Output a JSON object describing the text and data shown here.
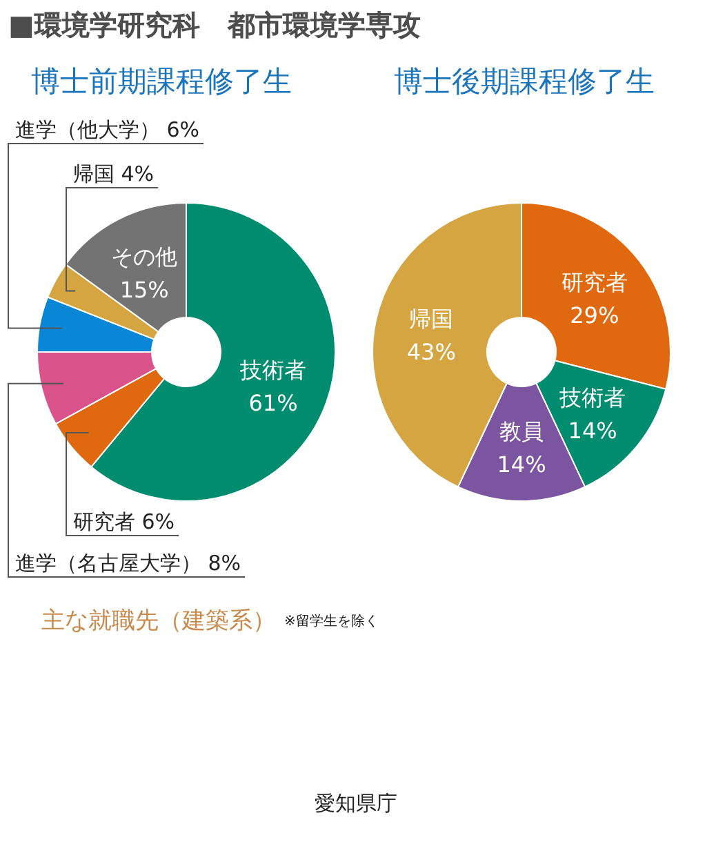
{
  "chart_data": [
    {
      "type": "donut",
      "title": "■環境学研究科　都市環境学専攻",
      "subtitle": "博士前期課程修了生",
      "categories": [
        "技術者",
        "研究者",
        "進学（名古屋大学）",
        "進学（他大学）",
        "帰国",
        "その他"
      ],
      "values": [
        61,
        6,
        8,
        6,
        4,
        15
      ],
      "value_labels": [
        "61%",
        "6%",
        "8%",
        "6%",
        "4%",
        "15%"
      ],
      "colors": [
        "#008c6e",
        "#e0690f",
        "#d9538a",
        "#0a86d6",
        "#d4a540",
        "#737373"
      ]
    },
    {
      "type": "donut",
      "title": "博士後期課程修了生",
      "categories": [
        "研究者",
        "技術者",
        "教員",
        "帰国"
      ],
      "values": [
        29,
        14,
        14,
        43
      ],
      "value_labels": [
        "29%",
        "14%",
        "14%",
        "43%"
      ],
      "colors": [
        "#e0690f",
        "#008c6e",
        "#7b55a0",
        "#d4a540"
      ]
    },
    {
      "type": "other",
      "title": "主な就職先（建築系）",
      "subtitle": "※留学生を除く",
      "annotations": [
        "愛知県庁"
      ]
    }
  ]
}
